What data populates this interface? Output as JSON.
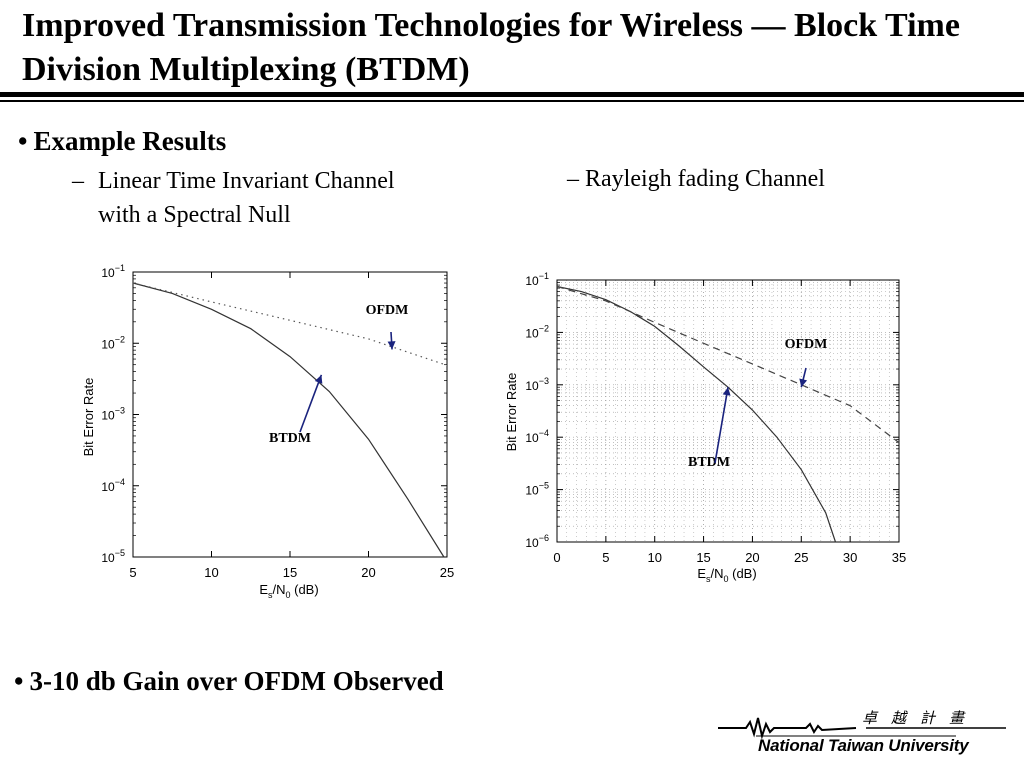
{
  "slide": {
    "title": "Improved Transmission Technologies for Wireless — Block Time Division Multiplexing (BTDM)",
    "bullet_main": "Example Results",
    "sub_left_line1": "Linear Time Invariant Channel",
    "sub_left_line2": "with a Spectral Null",
    "sub_right": "Rayleigh fading Channel",
    "bullet_bottom": "3-10 db Gain over OFDM Observed",
    "logo": {
      "text": "National Taiwan University",
      "chinese": "卓越計畫"
    }
  },
  "chart_data": [
    {
      "type": "line",
      "scale_y": "log",
      "grid": false,
      "xlabel": "E_s/N_0 (dB)",
      "ylabel": "Bit Error Rate",
      "xlim": [
        5,
        25
      ],
      "ylim": [
        1e-05,
        0.1
      ],
      "xticks": [
        "5",
        "10",
        "15",
        "20",
        "25"
      ],
      "yticks": [
        {
          "base": "10",
          "exp": "−1",
          "value": 0.1
        },
        {
          "base": "10",
          "exp": "−2",
          "value": 0.01
        },
        {
          "base": "10",
          "exp": "−3",
          "value": 0.001
        },
        {
          "base": "10",
          "exp": "−4",
          "value": 0.0001
        },
        {
          "base": "10",
          "exp": "−5",
          "value": 1e-05
        }
      ],
      "series": [
        {
          "name": "BTDM",
          "style": "solid",
          "x": [
            5,
            7.5,
            10,
            12.5,
            15,
            17.5,
            20,
            22.5,
            24.8
          ],
          "y": [
            0.07,
            0.05,
            0.03,
            0.016,
            0.0065,
            0.0021,
            0.00045,
            6.5e-05,
            1e-05
          ]
        },
        {
          "name": "OFDM",
          "style": "dotted",
          "x": [
            5,
            10,
            15,
            20,
            25
          ],
          "y": [
            0.07,
            0.038,
            0.021,
            0.0115,
            0.0049
          ]
        }
      ],
      "annotations": [
        {
          "text": "OFDM",
          "point": [
            21.5,
            0.0082
          ]
        },
        {
          "text": "BTDM",
          "point": [
            17,
            0.0036
          ]
        }
      ]
    },
    {
      "type": "line",
      "scale_y": "log",
      "grid": true,
      "xlabel": "E_s/N_0 (dB)",
      "ylabel": "Bit Error Rate",
      "xlim": [
        0,
        35
      ],
      "ylim": [
        1e-06,
        0.1
      ],
      "xticks": [
        "0",
        "5",
        "10",
        "15",
        "20",
        "25",
        "30",
        "35"
      ],
      "yticks": [
        {
          "base": "10",
          "exp": "−1",
          "value": 0.1
        },
        {
          "base": "10",
          "exp": "−2",
          "value": 0.01
        },
        {
          "base": "10",
          "exp": "−3",
          "value": 0.001
        },
        {
          "base": "10",
          "exp": "−4",
          "value": 0.0001
        },
        {
          "base": "10",
          "exp": "−5",
          "value": 1e-05
        },
        {
          "base": "10",
          "exp": "−6",
          "value": 1e-06
        }
      ],
      "series": [
        {
          "name": "BTDM",
          "style": "solid",
          "x": [
            0,
            2.5,
            5,
            7.5,
            10,
            12.5,
            15,
            17.5,
            20,
            22.5,
            25,
            27.5,
            28.5
          ],
          "y": [
            0.075,
            0.06,
            0.042,
            0.025,
            0.013,
            0.0055,
            0.0022,
            0.0009,
            0.00033,
            0.0001,
            2.4e-05,
            3.6e-06,
            1e-06
          ]
        },
        {
          "name": "OFDM",
          "style": "dashed",
          "x": [
            0,
            5,
            10,
            15,
            20,
            25,
            30,
            35
          ],
          "y": [
            0.075,
            0.04,
            0.0155,
            0.0062,
            0.0025,
            0.001,
            0.0004,
            7.9e-05
          ]
        }
      ],
      "annotations": [
        {
          "text": "OFDM",
          "point": [
            25,
            0.0009
          ]
        },
        {
          "text": "BTDM",
          "point": [
            17.5,
            0.0009
          ]
        }
      ]
    }
  ]
}
